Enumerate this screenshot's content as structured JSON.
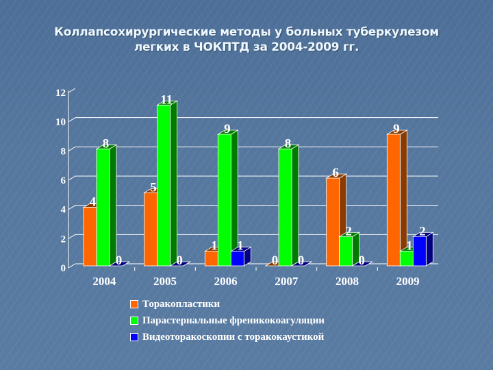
{
  "title_line1": "Коллапсохирургические методы у больных туберкулезом",
  "title_line2": "легких в ЧОКПТД за 2004-2009 гг.",
  "chart_data": {
    "type": "bar",
    "title": "Коллапсохирургические методы у больных туберкулезом легких в ЧОКПТД за 2004-2009 гг.",
    "xlabel": "",
    "ylabel": "",
    "categories": [
      "2004",
      "2005",
      "2006",
      "2007",
      "2008",
      "2009"
    ],
    "series": [
      {
        "name": "Торакопластики",
        "color": "#ff6600",
        "side": "#8b3a00",
        "values": [
          4,
          5,
          1,
          0,
          6,
          9
        ]
      },
      {
        "name": "Парастернальные френикокоагуляции",
        "color": "#00ff00",
        "side": "#007a00",
        "values": [
          8,
          11,
          9,
          8,
          2,
          1
        ]
      },
      {
        "name": "Видеоторакоскопии с торакокаустикой",
        "color": "#0000ff",
        "side": "#000080",
        "values": [
          0,
          0,
          1,
          0,
          0,
          2
        ]
      }
    ],
    "ylim": [
      0,
      12
    ],
    "yticks": [
      "0",
      "2",
      "4",
      "6",
      "8",
      "10",
      "12"
    ],
    "grid": true,
    "legend_position": "bottom",
    "data_labels": true,
    "style": "3d-column"
  },
  "legend": [
    {
      "label": "Торакопластики",
      "color": "#ff6600"
    },
    {
      "label": "Парастернальные френикокоагуляции",
      "color": "#00ff00"
    },
    {
      "label": "Видеоторакоскопии с торакокаустикой",
      "color": "#0000ff"
    }
  ]
}
